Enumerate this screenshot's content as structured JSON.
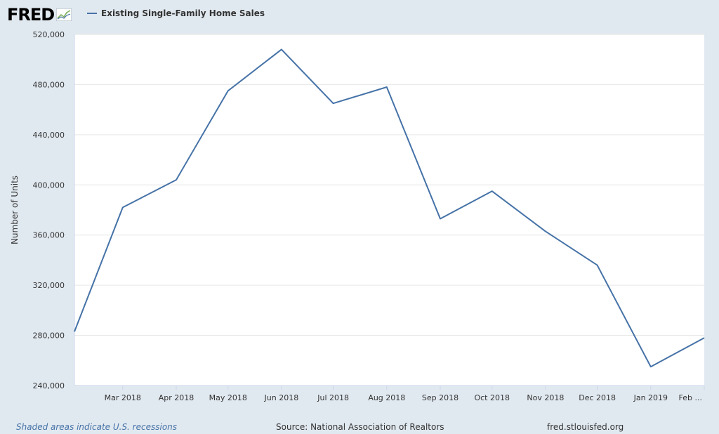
{
  "header": {
    "logo_text": "FRED",
    "logo_icon": "trend-chart-icon",
    "legend_label": "Existing Single-Family Home Sales"
  },
  "footer": {
    "recession_note": "Shaded areas indicate U.S. recessions",
    "source": "Source: National Association of Realtors",
    "site": "fred.stlouisfed.org"
  },
  "colors": {
    "series": "#4572a7",
    "page_bg": "#e1e9f0",
    "plot_bg": "#ffffff",
    "grid": "#e6e6e6"
  },
  "chart_data": {
    "type": "line",
    "title": "",
    "xlabel": "",
    "ylabel": "Number of Units",
    "ylim": [
      240000,
      520000
    ],
    "yticks": [
      240000,
      280000,
      320000,
      360000,
      400000,
      440000,
      480000,
      520000
    ],
    "ytick_labels": [
      "240,000",
      "280,000",
      "320,000",
      "360,000",
      "400,000",
      "440,000",
      "480,000",
      "520,000"
    ],
    "xlim": [
      "2018-02-01",
      "2019-02-01"
    ],
    "xticks": [
      "2018-03-01",
      "2018-04-01",
      "2018-05-01",
      "2018-06-01",
      "2018-07-01",
      "2018-08-01",
      "2018-09-01",
      "2018-10-01",
      "2018-11-01",
      "2018-12-01",
      "2019-01-01",
      "2019-02-01"
    ],
    "xtick_labels": [
      "Mar 2018",
      "Apr 2018",
      "May 2018",
      "Jun 2018",
      "Jul 2018",
      "Aug 2018",
      "Sep 2018",
      "Oct 2018",
      "Nov 2018",
      "Dec 2018",
      "Jan 2019",
      "Feb ..."
    ],
    "grid": true,
    "legend": "top-left",
    "series": [
      {
        "name": "Existing Single-Family Home Sales",
        "x": [
          "2018-02-01",
          "2018-03-01",
          "2018-04-01",
          "2018-05-01",
          "2018-06-01",
          "2018-07-01",
          "2018-08-01",
          "2018-09-01",
          "2018-10-01",
          "2018-11-01",
          "2018-12-01",
          "2019-01-01",
          "2019-02-01"
        ],
        "values": [
          283000,
          382000,
          404000,
          475000,
          508000,
          465000,
          478000,
          373000,
          395000,
          363000,
          336000,
          255000,
          278000
        ]
      }
    ]
  }
}
